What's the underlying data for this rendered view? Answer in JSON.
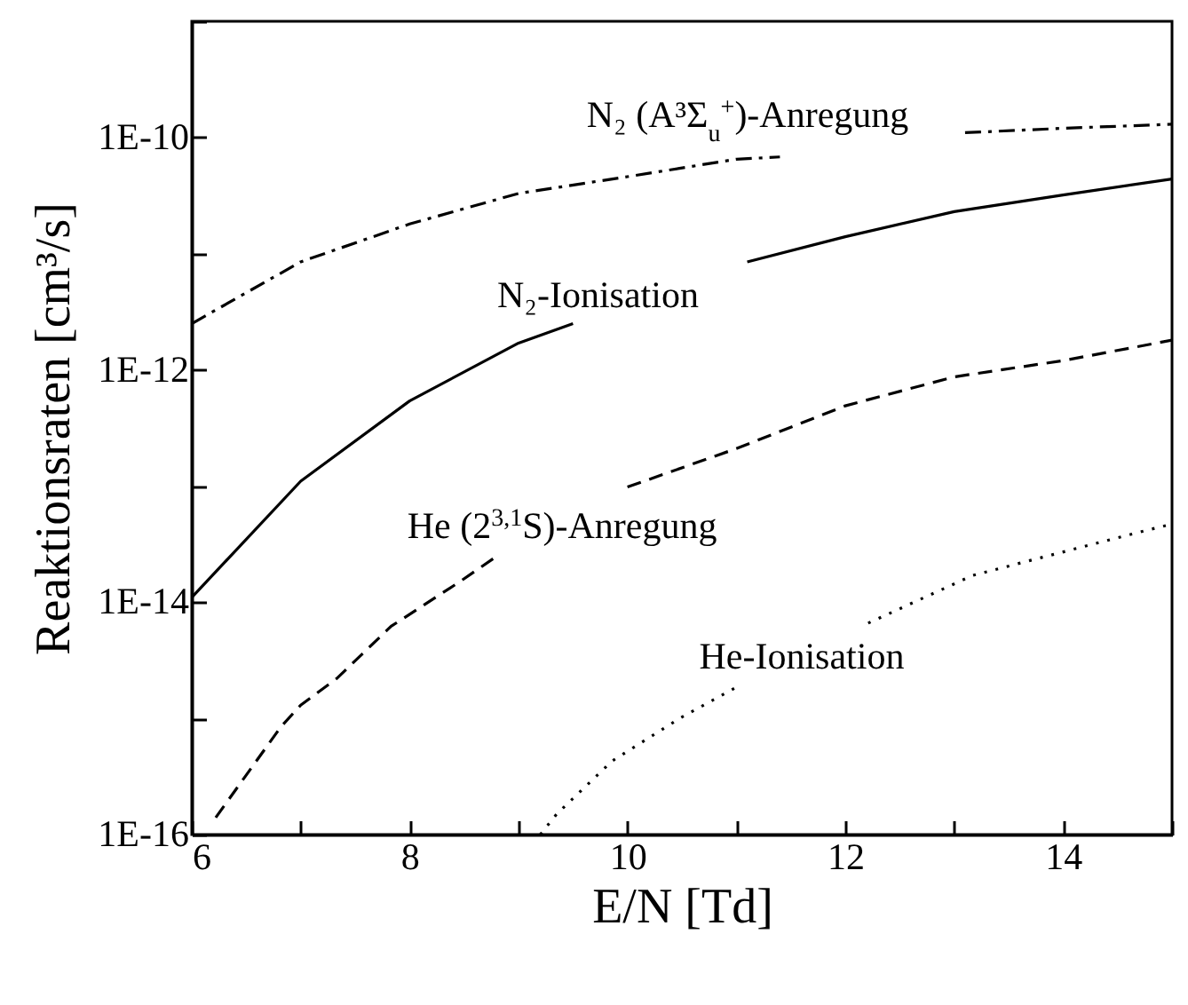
{
  "chart_data": {
    "type": "line",
    "xlabel": "E/N [Td]",
    "ylabel": "Reaktionsraten [cm³/s]",
    "xlim": [
      6,
      15
    ],
    "xticks": [
      6,
      {
        "value": 7,
        "label": null
      },
      8,
      {
        "value": 9,
        "label": null
      },
      10,
      {
        "value": 11,
        "label": null
      },
      12,
      {
        "value": 13,
        "label": null
      },
      14,
      {
        "value": 15,
        "label": null
      }
    ],
    "ylim": [
      1e-16,
      1e-09
    ],
    "yticks": [
      {
        "value": 1e-16,
        "label": "1E-16"
      },
      {
        "value": 1e-15,
        "label": null
      },
      {
        "value": 1e-14,
        "label": "1E-14"
      },
      {
        "value": 1e-13,
        "label": null
      },
      {
        "value": 1e-12,
        "label": "1E-12"
      },
      {
        "value": 1e-11,
        "label": null
      },
      {
        "value": 1e-10,
        "label": "1E-10"
      },
      {
        "value": 1e-09,
        "label": null
      }
    ],
    "log": "y",
    "grid": false,
    "series": [
      {
        "name": "N₂ (A³Σ$_{u}$$^{+}$)-Anregung",
        "color": "#000000",
        "line_style": "dashdot",
        "x": [
          6,
          7,
          8,
          9,
          10,
          11,
          11.4,
          12,
          13.1,
          14,
          15
        ],
        "values": [
          2.5e-12,
          8.5e-12,
          1.8e-11,
          3.3e-11,
          4.6e-11,
          6.5e-11,
          6.8e-11,
          null,
          1.1e-10,
          1.2e-10,
          1.3e-10
        ]
      },
      {
        "name": "N₂-Ionisation",
        "color": "#000000",
        "line_style": "solid",
        "x": [
          6,
          7,
          8,
          9,
          9.5,
          10.3,
          11.1,
          12,
          13,
          14,
          15
        ],
        "values": [
          1.1e-14,
          1.1e-13,
          5.4e-13,
          1.7e-12,
          2.5e-12,
          null,
          8.5e-12,
          1.4e-11,
          2.3e-11,
          3.2e-11,
          4.4e-11
        ]
      },
      {
        "name": "He (2$^{3,1}$S)-Anregung",
        "color": "#000000",
        "line_style": "dashed",
        "x": [
          6.22,
          6.82,
          7,
          7.33,
          7.83,
          8.46,
          8.83,
          9.4,
          10,
          11,
          12,
          13,
          14,
          15
        ],
        "values": [
          1.4e-16,
          8.5e-16,
          1.3e-15,
          2.2e-15,
          6.2e-15,
          1.5e-14,
          2.6e-14,
          null,
          9.8e-14,
          2.1e-13,
          4.9e-13,
          8.7e-13,
          1.2e-12,
          1.8e-12
        ]
      },
      {
        "name": "He-Ionisation",
        "color": "#000000",
        "line_style": "dotted",
        "x": [
          9.2,
          9.35,
          9.86,
          10.48,
          11.02,
          11.6,
          12.21,
          13.17,
          14.74,
          15
        ],
        "values": [
          1e-16,
          1.5e-16,
          4.3e-16,
          1e-15,
          1.9e-15,
          null,
          6.6e-15,
          1.7e-14,
          4.1e-14,
          4.7e-14
        ]
      }
    ]
  }
}
